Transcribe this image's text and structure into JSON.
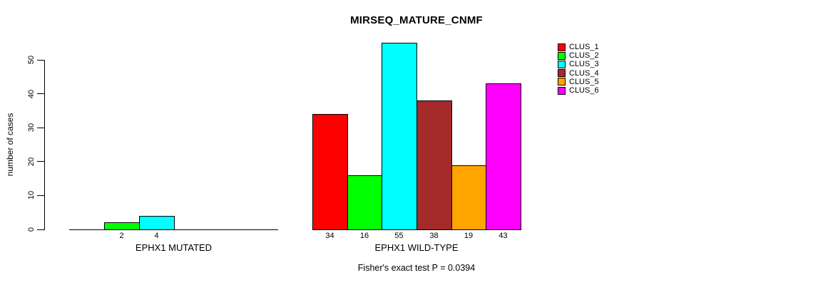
{
  "chart_data": {
    "type": "bar",
    "title": "MIRSEQ_MATURE_CNMF",
    "ylabel": "number of cases",
    "ylim": [
      0,
      55
    ],
    "yticks": [
      0,
      10,
      20,
      30,
      40,
      50
    ],
    "grid": false,
    "legend_position": "right",
    "categories": [
      "EPHX1 MUTATED",
      "EPHX1 WILD-TYPE"
    ],
    "series": [
      {
        "name": "CLUS_1",
        "color": "#FF0000",
        "values": [
          0,
          34
        ]
      },
      {
        "name": "CLUS_2",
        "color": "#00FF00",
        "values": [
          2,
          16
        ]
      },
      {
        "name": "CLUS_3",
        "color": "#00FFFF",
        "values": [
          4,
          55
        ]
      },
      {
        "name": "CLUS_4",
        "color": "#A52A2A",
        "values": [
          0,
          38
        ]
      },
      {
        "name": "CLUS_5",
        "color": "#FFA500",
        "values": [
          0,
          19
        ]
      },
      {
        "name": "CLUS_6",
        "color": "#FF00FF",
        "values": [
          0,
          43
        ]
      }
    ],
    "bar_value_labels": {
      "EPHX1 MUTATED": [
        "",
        "2",
        "4",
        "",
        "",
        ""
      ],
      "EPHX1 WILD-TYPE": [
        "34",
        "16",
        "55",
        "38",
        "19",
        "43"
      ]
    },
    "annotation": "Fisher's exact test P = 0.0394"
  }
}
